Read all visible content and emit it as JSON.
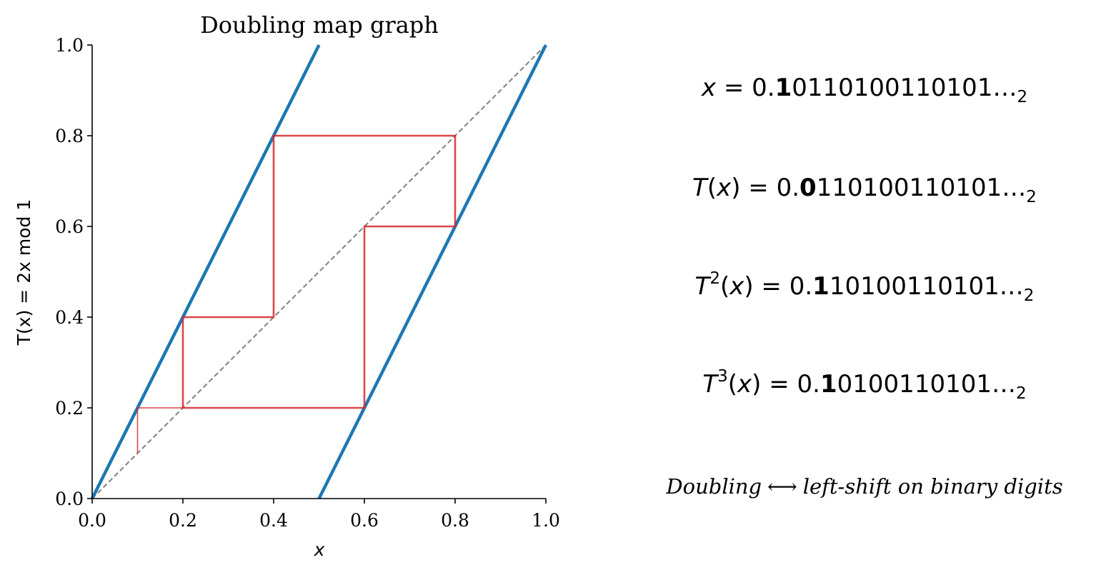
{
  "chart_data": {
    "type": "line",
    "title": "Doubling map graph",
    "xlabel": "x",
    "ylabel": "T(x) = 2x mod 1",
    "xlim": [
      0.0,
      1.0
    ],
    "ylim": [
      0.0,
      1.0
    ],
    "xticks": [
      "0.0",
      "0.2",
      "0.4",
      "0.6",
      "0.8",
      "1.0"
    ],
    "yticks": [
      "0.0",
      "0.2",
      "0.4",
      "0.6",
      "0.8",
      "1.0"
    ],
    "grid": false,
    "series": [
      {
        "role": "map-branch-1",
        "color": "#1f77b4",
        "x": [
          0.0,
          0.5
        ],
        "y": [
          0.0,
          1.0
        ]
      },
      {
        "role": "map-branch-2",
        "color": "#1f77b4",
        "x": [
          0.5,
          1.0
        ],
        "y": [
          0.0,
          1.0
        ]
      },
      {
        "role": "diagonal",
        "color": "#808080",
        "dashed": true,
        "x": [
          0.0,
          1.0
        ],
        "y": [
          0.0,
          1.0
        ]
      },
      {
        "role": "cobweb-first",
        "color": "#d62728",
        "x": [
          0.1,
          0.1,
          0.2
        ],
        "y": [
          0.1,
          0.2,
          0.2
        ]
      },
      {
        "role": "cobweb",
        "color": "#d62728",
        "x": [
          0.2,
          0.2,
          0.4,
          0.4,
          0.8,
          0.8,
          0.6,
          0.6,
          0.2
        ],
        "y": [
          0.2,
          0.4,
          0.4,
          0.8,
          0.8,
          0.6,
          0.6,
          0.2,
          0.2
        ]
      }
    ]
  },
  "equations": [
    {
      "lhs_letter": "x",
      "lhs_sup": "",
      "lhs_arg": "",
      "eq": " = 0.",
      "bold_digit": "1",
      "rest": "0110100110101…",
      "base": "2"
    },
    {
      "lhs_letter": "T",
      "lhs_sup": "",
      "lhs_arg": "x",
      "eq": " = 0.",
      "bold_digit": "0",
      "rest": "110100110101…",
      "base": "2"
    },
    {
      "lhs_letter": "T",
      "lhs_sup": "2",
      "lhs_arg": "x",
      "eq": " = 0.",
      "bold_digit": "1",
      "rest": "10100110101…",
      "base": "2"
    },
    {
      "lhs_letter": "T",
      "lhs_sup": "3",
      "lhs_arg": "x",
      "eq": " = 0.",
      "bold_digit": "1",
      "rest": "0100110101…",
      "base": "2"
    }
  ],
  "caption": {
    "left": "Doubling",
    "arrow": "⟷",
    "right": "left-shift on binary digits"
  }
}
